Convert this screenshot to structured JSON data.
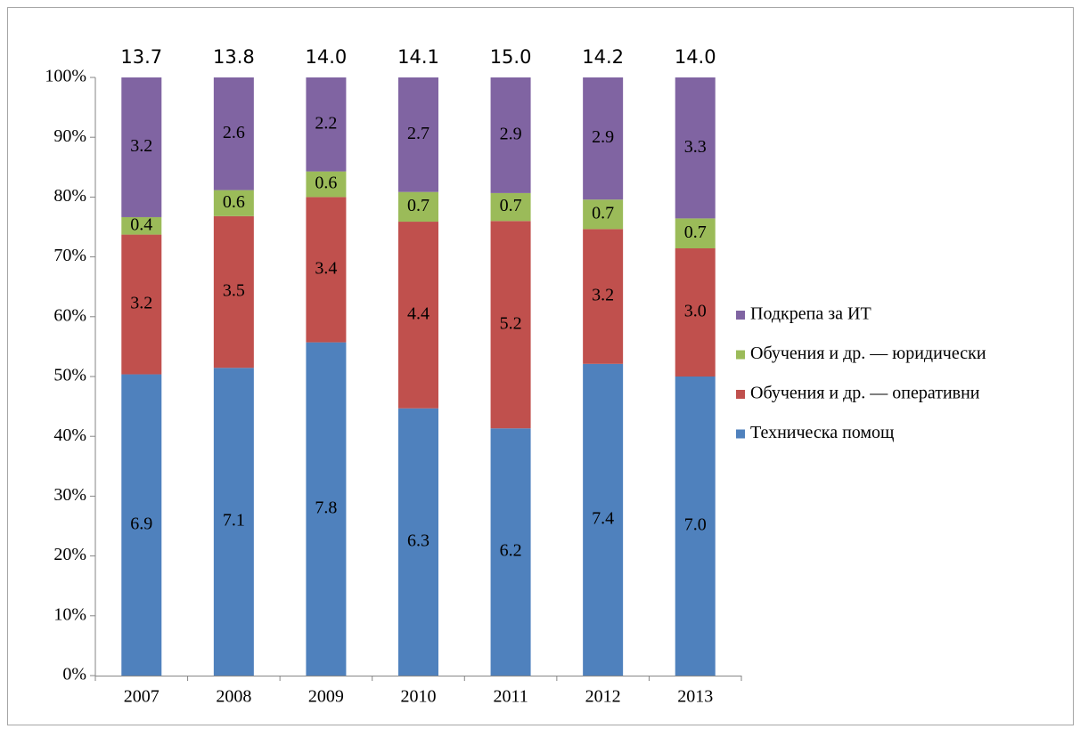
{
  "chart_data": {
    "type": "bar",
    "stacked": "percent",
    "categories": [
      "2007",
      "2008",
      "2009",
      "2010",
      "2011",
      "2012",
      "2013"
    ],
    "series": [
      {
        "name": "Техническа помощ",
        "color": "#4f81bd",
        "values": [
          6.9,
          7.1,
          7.8,
          6.3,
          6.2,
          7.4,
          7
        ],
        "value_labels": [
          "6.9",
          "7.1",
          "7.8",
          "6.3",
          "6.2",
          "7.4",
          "7.0"
        ]
      },
      {
        "name": "Обучения и др. — оперативни",
        "color": "#c0504d",
        "values": [
          3.2,
          3.5,
          3.4,
          4.4,
          5.2,
          3.2,
          3
        ],
        "value_labels": [
          "3.2",
          "3.5",
          "3.4",
          "4.4",
          "5.2",
          "3.2",
          "3.0"
        ]
      },
      {
        "name": "Обучения и др. — юридически",
        "color": "#9bbb59",
        "values": [
          0.4,
          0.6,
          0.6,
          0.7,
          0.7,
          0.7,
          0.7
        ],
        "value_labels": [
          "0.4",
          "0.6",
          "0.6",
          "0.7",
          "0.7",
          "0.7",
          "0.7"
        ]
      },
      {
        "name": "Подкрепа за ИТ",
        "color": "#8064a2",
        "values": [
          3.2,
          2.6,
          2.2,
          2.7,
          2.9,
          2.9,
          3.3
        ],
        "value_labels": [
          "3.2",
          "2.6",
          "2.2",
          "2.7",
          "2.9",
          "2.9",
          "3.3"
        ]
      }
    ],
    "totals": [
      13.7,
      13.8,
      14,
      14.1,
      15,
      14.2,
      14
    ],
    "total_labels": [
      "13.7",
      "13.8",
      "14.0",
      "14.1",
      "15.0",
      "14.2",
      "14.0"
    ],
    "ylim": [
      0,
      100
    ],
    "yticks": [
      {
        "value": 0,
        "label": "0%"
      },
      {
        "value": 10,
        "label": "10%"
      },
      {
        "value": 20,
        "label": "20%"
      },
      {
        "value": 30,
        "label": "30%"
      },
      {
        "value": 40,
        "label": "40%"
      },
      {
        "value": 50,
        "label": "50%"
      },
      {
        "value": 60,
        "label": "60%"
      },
      {
        "value": 70,
        "label": "70%"
      },
      {
        "value": 80,
        "label": "80%"
      },
      {
        "value": 90,
        "label": "90%"
      },
      {
        "value": 100,
        "label": "100%"
      }
    ],
    "legend": "right",
    "grid": false
  }
}
